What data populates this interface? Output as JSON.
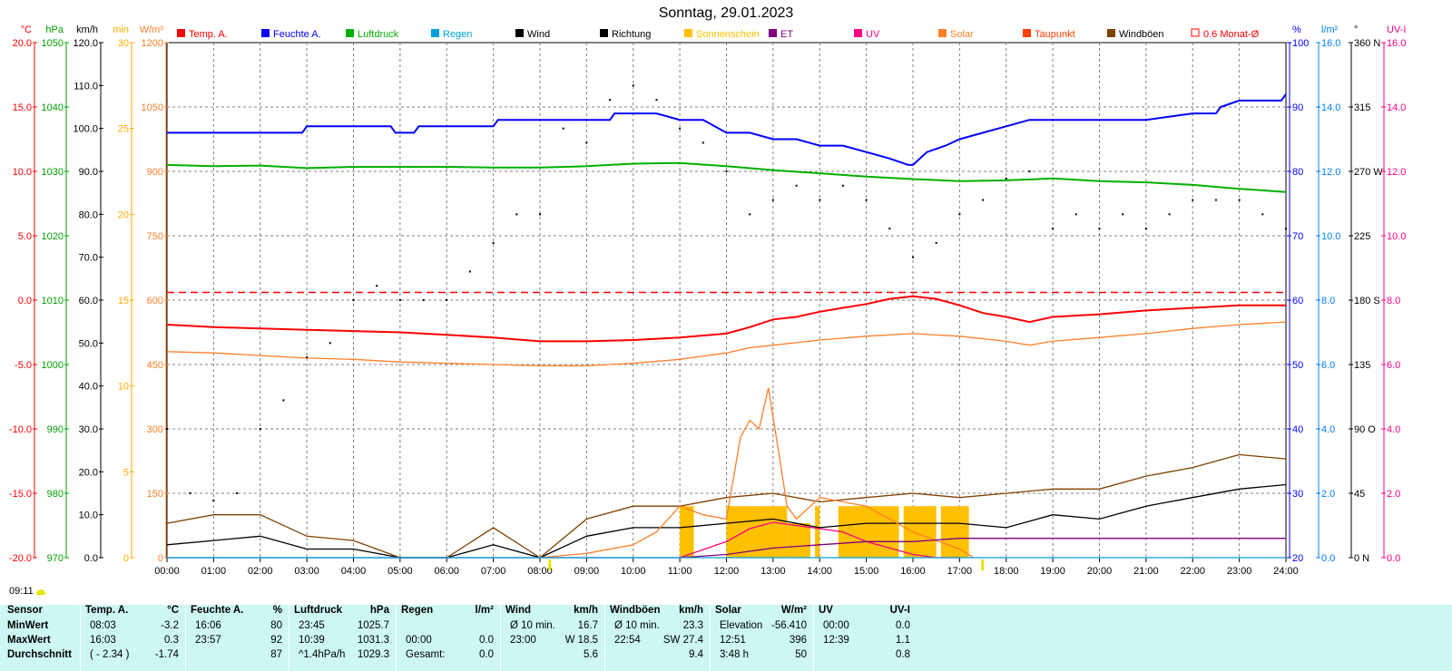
{
  "header": {
    "title": "Sonntag, 29.01.2023"
  },
  "status": {
    "time": "09:11"
  },
  "chart_data": {
    "type": "line",
    "title": "Sonntag, 29.01.2023",
    "x_ticks": [
      "00:00",
      "01:00",
      "02:00",
      "03:00",
      "04:00",
      "05:00",
      "06:00",
      "07:00",
      "08:00",
      "09:00",
      "10:00",
      "11:00",
      "12:00",
      "13:00",
      "14:00",
      "15:00",
      "16:00",
      "17:00",
      "18:00",
      "19:00",
      "20:00",
      "21:00",
      "22:00",
      "23:00",
      "24:00"
    ],
    "axes": {
      "left": [
        {
          "unit": "°C",
          "color": "#ff0000",
          "ylim": [
            -20,
            20
          ],
          "ticks": [
            "20.0",
            "15.0",
            "10.0",
            "5.0",
            "0.0",
            "-5.0",
            "-10.0",
            "-15.0",
            "-20.0"
          ]
        },
        {
          "unit": "hPa",
          "color": "#00a000",
          "ylim": [
            970,
            1050
          ],
          "ticks": [
            "1050",
            "1040",
            "1030",
            "1020",
            "1010",
            "1000",
            "990",
            "980",
            "970"
          ]
        },
        {
          "unit": "km/h",
          "color": "#000000",
          "ylim": [
            0,
            120
          ],
          "ticks": [
            "120.0",
            "110.0",
            "100.0",
            "90.0",
            "80.0",
            "70.0",
            "60.0",
            "50.0",
            "40.0",
            "30.0",
            "20.0",
            "10.0",
            "0.0"
          ]
        },
        {
          "unit": "min",
          "color": "#ffaa00",
          "ylim": [
            0,
            30
          ],
          "ticks": [
            "30",
            "25",
            "20",
            "15",
            "10",
            "5",
            "0"
          ]
        },
        {
          "unit": "W/m²",
          "color": "#ff7f27",
          "ylim": [
            0,
            1200
          ],
          "ticks": [
            "1200",
            "1050",
            "900",
            "750",
            "600",
            "450",
            "300",
            "150",
            "0"
          ]
        }
      ],
      "right": [
        {
          "unit": "%",
          "color": "#0000ff",
          "ylim": [
            20,
            100
          ],
          "ticks": [
            "100",
            "90",
            "80",
            "70",
            "60",
            "50",
            "40",
            "30",
            "20"
          ]
        },
        {
          "unit": "l/m²",
          "color": "#0080ff",
          "ylim": [
            0,
            16
          ],
          "ticks": [
            "16.0",
            "14.0",
            "12.0",
            "10.0",
            "8.0",
            "6.0",
            "4.0",
            "2.0",
            "0.0"
          ]
        },
        {
          "unit": "°",
          "color": "#000000",
          "ylim": [
            0,
            360
          ],
          "ticks": [
            "360 N",
            "315",
            "270 W",
            "225",
            "180 S",
            "135",
            "90 O",
            "45",
            "0 N"
          ]
        },
        {
          "unit": "UV-I",
          "color": "#ff0080",
          "ylim": [
            0,
            16
          ],
          "ticks": [
            "16.0",
            "14.0",
            "12.0",
            "10.0",
            "8.0",
            "6.0",
            "4.0",
            "2.0",
            "0.0"
          ]
        }
      ]
    },
    "legend": [
      {
        "name": "Temp. A.",
        "color": "#ff0000"
      },
      {
        "name": "Feuchte A.",
        "color": "#0000ff"
      },
      {
        "name": "Luftdruck",
        "color": "#00b000"
      },
      {
        "name": "Regen",
        "color": "#00a0e0"
      },
      {
        "name": "Wind",
        "color": "#000000"
      },
      {
        "name": "Richtung",
        "color": "#000000"
      },
      {
        "name": "Sonnenschein",
        "color": "#ffc000"
      },
      {
        "name": "ET",
        "color": "#800080"
      },
      {
        "name": "UV",
        "color": "#ff0080"
      },
      {
        "name": "Solar",
        "color": "#ff7f27"
      },
      {
        "name": "Taupunkt",
        "color": "#ff4000"
      },
      {
        "name": "Windböen",
        "color": "#804000"
      },
      {
        "name": "0.6 Monat-Ø",
        "color": "#ff0000"
      }
    ],
    "reference_lines": [
      {
        "name": "0.6 Monat-Ø",
        "unit": "°C",
        "y": 0.6,
        "style": "dashed",
        "color": "#ff0000"
      }
    ],
    "series": [
      {
        "name": "Temp. A.",
        "unit": "°C",
        "color": "#ff0000",
        "x": [
          0,
          1,
          2,
          3,
          4,
          5,
          6,
          7,
          8,
          9,
          10,
          11,
          12,
          12.5,
          13,
          13.5,
          14,
          14.5,
          15,
          15.5,
          16,
          16.5,
          17,
          17.5,
          18,
          18.5,
          19,
          20,
          21,
          22,
          23,
          24
        ],
        "y": [
          -1.9,
          -2.1,
          -2.2,
          -2.3,
          -2.4,
          -2.5,
          -2.7,
          -2.9,
          -3.2,
          -3.2,
          -3.1,
          -2.9,
          -2.6,
          -2.1,
          -1.5,
          -1.3,
          -0.9,
          -0.6,
          -0.3,
          0.1,
          0.3,
          0.1,
          -0.4,
          -1.0,
          -1.3,
          -1.7,
          -1.3,
          -1.1,
          -0.8,
          -0.6,
          -0.4,
          -0.4
        ]
      },
      {
        "name": "Taupunkt",
        "unit": "°C",
        "color": "#ff7f27",
        "x": [
          0,
          1,
          2,
          3,
          4,
          5,
          6,
          7,
          8,
          9,
          10,
          11,
          12,
          12.5,
          13,
          14,
          15,
          16,
          17,
          18,
          18.5,
          19,
          20,
          21,
          22,
          23,
          24
        ],
        "y": [
          -4.0,
          -4.1,
          -4.3,
          -4.5,
          -4.6,
          -4.8,
          -4.9,
          -5.0,
          -5.1,
          -5.1,
          -4.9,
          -4.6,
          -4.1,
          -3.7,
          -3.5,
          -3.1,
          -2.8,
          -2.6,
          -2.8,
          -3.2,
          -3.5,
          -3.2,
          -2.9,
          -2.6,
          -2.2,
          -1.9,
          -1.7
        ]
      },
      {
        "name": "Feuchte A.",
        "unit": "%",
        "color": "#0000ff",
        "x": [
          0,
          2.9,
          3.0,
          4.8,
          4.9,
          5.3,
          5.4,
          7.0,
          7.1,
          9.5,
          9.6,
          10.5,
          11.0,
          11.5,
          12.0,
          12.5,
          13.0,
          13.5,
          14.0,
          14.5,
          15.0,
          15.5,
          15.9,
          16.0,
          16.3,
          16.7,
          17.0,
          17.5,
          18.0,
          18.5,
          19.0,
          20.0,
          21.0,
          22.0,
          22.5,
          22.6,
          23.0,
          23.9,
          24.0
        ],
        "y": [
          86,
          86,
          87,
          87,
          86,
          86,
          87,
          87,
          88,
          88,
          89,
          89,
          88,
          88,
          86,
          86,
          85,
          85,
          84,
          84,
          83,
          82,
          81,
          81,
          83,
          84,
          85,
          86,
          87,
          88,
          88,
          88,
          88,
          89,
          89,
          90,
          91,
          91,
          92
        ]
      },
      {
        "name": "Luftdruck",
        "unit": "hPa",
        "color": "#00b000",
        "x": [
          0,
          1,
          2,
          3,
          4,
          5,
          6,
          7,
          8,
          9,
          10,
          11,
          12,
          13,
          14,
          15,
          16,
          17,
          18,
          19,
          20,
          21,
          22,
          23,
          24
        ],
        "y": [
          1031.0,
          1030.8,
          1030.9,
          1030.5,
          1030.7,
          1030.7,
          1030.7,
          1030.6,
          1030.6,
          1030.8,
          1031.2,
          1031.3,
          1030.8,
          1030.2,
          1029.7,
          1029.2,
          1028.8,
          1028.5,
          1028.6,
          1028.9,
          1028.5,
          1028.3,
          1027.9,
          1027.3,
          1026.8
        ]
      },
      {
        "name": "Wind",
        "unit": "km/h",
        "color": "#000000",
        "x": [
          0,
          1,
          2,
          3,
          4,
          5,
          6,
          7,
          8,
          9,
          10,
          11,
          12,
          13,
          14,
          15,
          16,
          17,
          18,
          19,
          20,
          21,
          22,
          23,
          24
        ],
        "y": [
          3,
          4,
          5,
          2,
          2,
          0,
          0,
          3,
          0,
          5,
          7,
          7,
          8,
          9,
          7,
          8,
          8,
          8,
          7,
          10,
          9,
          12,
          14,
          16,
          17
        ]
      },
      {
        "name": "Windböen",
        "unit": "km/h",
        "color": "#804000",
        "x": [
          0,
          1,
          2,
          3,
          4,
          5,
          6,
          7,
          8,
          9,
          10,
          11,
          12,
          13,
          14,
          15,
          16,
          17,
          18,
          19,
          20,
          21,
          22,
          23,
          24
        ],
        "y": [
          8,
          10,
          10,
          5,
          4,
          0,
          0,
          7,
          0,
          9,
          12,
          12,
          14,
          15,
          13,
          14,
          15,
          14,
          15,
          16,
          16,
          19,
          21,
          24,
          23
        ]
      },
      {
        "name": "Richtung",
        "unit": "°",
        "color": "#000000",
        "style": "dots",
        "x": [
          0,
          0.5,
          1,
          1.5,
          2,
          2.5,
          3,
          3.5,
          4,
          4.5,
          5,
          5.5,
          6,
          6.5,
          7,
          7.5,
          8,
          8.5,
          9,
          9.5,
          10,
          10.5,
          11,
          11.5,
          12,
          12.5,
          13,
          13.5,
          14,
          14.5,
          15,
          15.5,
          16,
          16.5,
          17,
          17.5,
          18,
          18.5,
          19,
          19.5,
          20,
          20.5,
          21,
          21.5,
          22,
          22.5,
          23,
          23.5,
          24
        ],
        "y": [
          90,
          45,
          40,
          45,
          90,
          110,
          140,
          150,
          180,
          190,
          180,
          180,
          180,
          200,
          220,
          240,
          240,
          300,
          290,
          320,
          330,
          320,
          300,
          290,
          270,
          240,
          250,
          260,
          250,
          260,
          250,
          230,
          210,
          220,
          240,
          250,
          265,
          270,
          230,
          240,
          230,
          240,
          230,
          240,
          250,
          250,
          250,
          240,
          230
        ]
      },
      {
        "name": "Solar",
        "unit": "W/m²",
        "color": "#ff7f27",
        "x": [
          8,
          9,
          10,
          10.5,
          11,
          11.5,
          12,
          12.3,
          12.5,
          12.7,
          12.9,
          13.1,
          13.3,
          13.5,
          14,
          14.5,
          15,
          15.5,
          16,
          16.5,
          17,
          17.3
        ],
        "y": [
          0,
          10,
          30,
          60,
          120,
          100,
          90,
          280,
          320,
          300,
          396,
          260,
          120,
          90,
          140,
          130,
          120,
          90,
          60,
          40,
          20,
          0
        ]
      },
      {
        "name": "UV",
        "unit": "UV-I",
        "color": "#ff0080",
        "x": [
          11,
          12,
          12.5,
          13,
          13.5,
          14,
          14.5,
          15,
          15.5,
          16,
          16.5,
          17
        ],
        "y": [
          0,
          0.5,
          0.9,
          1.1,
          1.0,
          0.9,
          0.8,
          0.5,
          0.3,
          0.1,
          0,
          0
        ]
      },
      {
        "name": "ET",
        "unit": "l/m²",
        "color": "#800080",
        "x": [
          0,
          11,
          12,
          13,
          14,
          15,
          16,
          17,
          24
        ],
        "y": [
          0,
          0,
          0.1,
          0.3,
          0.4,
          0.5,
          0.5,
          0.6,
          0.6
        ]
      },
      {
        "name": "Regen",
        "unit": "l/m²",
        "color": "#00a0e0",
        "x": [
          0,
          24
        ],
        "y": [
          0,
          0
        ]
      }
    ],
    "sunshine": {
      "unit": "min",
      "color": "#ffc000",
      "bars": [
        [
          11.0,
          11.3,
          3
        ],
        [
          12.0,
          12.7,
          3
        ],
        [
          12.7,
          13.3,
          3
        ],
        [
          13.3,
          13.8,
          2
        ],
        [
          13.9,
          14.0,
          3
        ],
        [
          14.4,
          14.9,
          3
        ],
        [
          14.9,
          15.7,
          3
        ],
        [
          15.8,
          16.5,
          3
        ],
        [
          16.6,
          17.2,
          3
        ]
      ]
    },
    "sun_events": [
      "08:12",
      "17:29"
    ]
  },
  "stats": {
    "row_labels": [
      "Sensor",
      "MinWert",
      "MaxWert",
      "Durchschnitt"
    ],
    "groups": [
      {
        "name": "Temp. A.",
        "unit": "°C",
        "rows": [
          [
            "08:03",
            "-3.2"
          ],
          [
            "16:03",
            "0.3"
          ],
          [
            "( - 2.34 )",
            "-1.74"
          ]
        ]
      },
      {
        "name": "Feuchte A.",
        "unit": "%",
        "rows": [
          [
            "16:06",
            "80"
          ],
          [
            "23:57",
            "92"
          ],
          [
            "",
            "87"
          ]
        ]
      },
      {
        "name": "Luftdruck",
        "unit": "hPa",
        "rows": [
          [
            "23:45",
            "1025.7"
          ],
          [
            "10:39",
            "1031.3"
          ],
          [
            "^1.4hPa/h",
            "1029.3"
          ]
        ]
      },
      {
        "name": "Regen",
        "unit": "l/m²",
        "rows": [
          [
            "",
            ""
          ],
          [
            "00:00",
            "0.0"
          ],
          [
            "Gesamt:",
            "0.0"
          ]
        ]
      },
      {
        "name": "Wind",
        "unit": "km/h",
        "rows": [
          [
            "Ø 10 min.",
            "16.7"
          ],
          [
            "23:00",
            "W 18.5"
          ],
          [
            "",
            "5.6"
          ]
        ]
      },
      {
        "name": "Windböen",
        "unit": "km/h",
        "rows": [
          [
            "Ø 10 min.",
            "23.3"
          ],
          [
            "22:54",
            "SW 27.4"
          ],
          [
            "",
            "9.4"
          ]
        ]
      },
      {
        "name": "Solar",
        "unit": "W/m²",
        "rows": [
          [
            "Elevation",
            "-56.410"
          ],
          [
            "12:51",
            "396"
          ],
          [
            "3:48 h",
            "50"
          ]
        ]
      },
      {
        "name": "UV",
        "unit": "UV-I",
        "rows": [
          [
            "00:00",
            "0.0"
          ],
          [
            "12:39",
            "1.1"
          ],
          [
            "",
            "0.8"
          ]
        ]
      }
    ]
  }
}
